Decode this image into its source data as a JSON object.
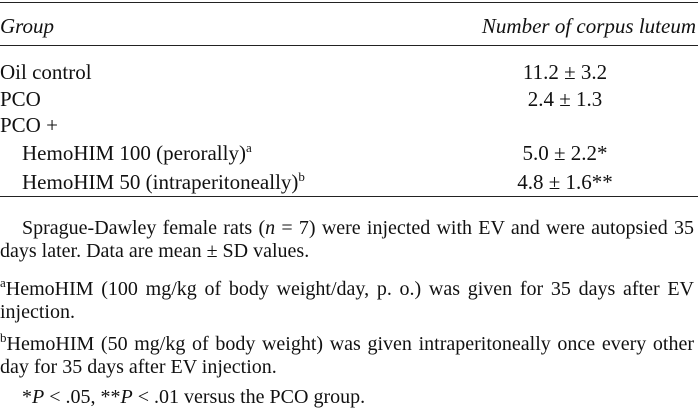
{
  "table": {
    "header": [
      "Group",
      "Number of corpus luteum"
    ],
    "rows": [
      {
        "label": [
          "Oil control"
        ],
        "value": "11.2 ± 3.2"
      },
      {
        "label": [
          "PCO"
        ],
        "value": "2.4 ± 1.3"
      },
      {
        "label": [
          "PCO +"
        ],
        "value": null
      },
      {
        "label": [
          "HemoHIM 100 (perorally)",
          "a"
        ],
        "value": "5.0 ± 2.2*"
      },
      {
        "label": [
          "HemoHIM 50 (intraperitoneally)",
          "b"
        ],
        "value": "4.8 ± 1.6**"
      }
    ]
  },
  "notes": [
    [
      "Sprague-Dawley female rats (",
      "n",
      " = 7) were injected with EV and were autopsied 35 days later. Data are mean ± SD values."
    ],
    [
      "a",
      "HemoHIM (100 mg/kg of body weight/day, p. o.) was given for 35 days after EV injection."
    ],
    [
      "b",
      "HemoHIM (50 mg/kg of body weight) was given intraperitoneally once every other day for 35 days after EV injection."
    ],
    [
      "*",
      "P",
      " < .05, **",
      "P",
      " < .01 versus the PCO group."
    ]
  ]
}
